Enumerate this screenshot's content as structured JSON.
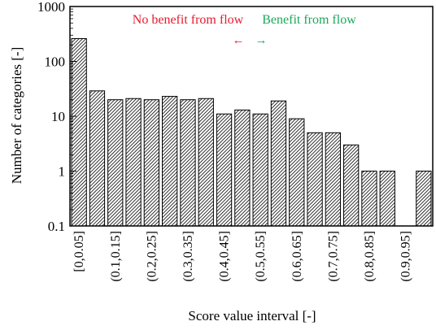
{
  "chart_data": {
    "type": "bar",
    "xlabel": "Score value interval [-]",
    "ylabel": "Number of categories [-]",
    "yscale": "log",
    "ylim": [
      0.1,
      1000
    ],
    "yticks": [
      "0.1",
      "1",
      "10",
      "100",
      "1000"
    ],
    "grid": false,
    "bar_fill": "hatched",
    "categories": [
      "[0,0.05]",
      "(0.05,0.1]",
      "(0.1,0.15]",
      "(0.15,0.2]",
      "(0.2,0.25]",
      "(0.25,0.3]",
      "(0.3,0.35]",
      "(0.35,0.4]",
      "(0.4,0.45]",
      "(0.45,0.5]",
      "(0.5,0.55]",
      "(0.55,0.6]",
      "(0.6,0.65]",
      "(0.65,0.7]",
      "(0.7,0.75]",
      "(0.75,0.8]",
      "(0.8,0.85]",
      "(0.85,0.9]",
      "(0.9,0.95]",
      "(0.95,1]"
    ],
    "tick_labels": [
      "[0,0.05]",
      "(0.1,0.15]",
      "(0.2,0.25]",
      "(0.3,0.35]",
      "(0.4,0.45]",
      "(0.5,0.55]",
      "(0.6,0.65]",
      "(0.7,0.75]",
      "(0.8,0.85]",
      "(0.9,0.95]"
    ],
    "values": [
      260,
      29,
      20,
      21,
      20,
      23,
      20,
      21,
      11,
      13,
      11,
      19,
      9,
      5,
      5,
      3,
      1,
      1,
      0,
      1
    ],
    "annotations": [
      {
        "text": "No benefit from flow",
        "arrow": "←",
        "color": "#e8192c"
      },
      {
        "text": "Benefit from flow",
        "arrow": "→",
        "color": "#1aa85a"
      }
    ]
  }
}
